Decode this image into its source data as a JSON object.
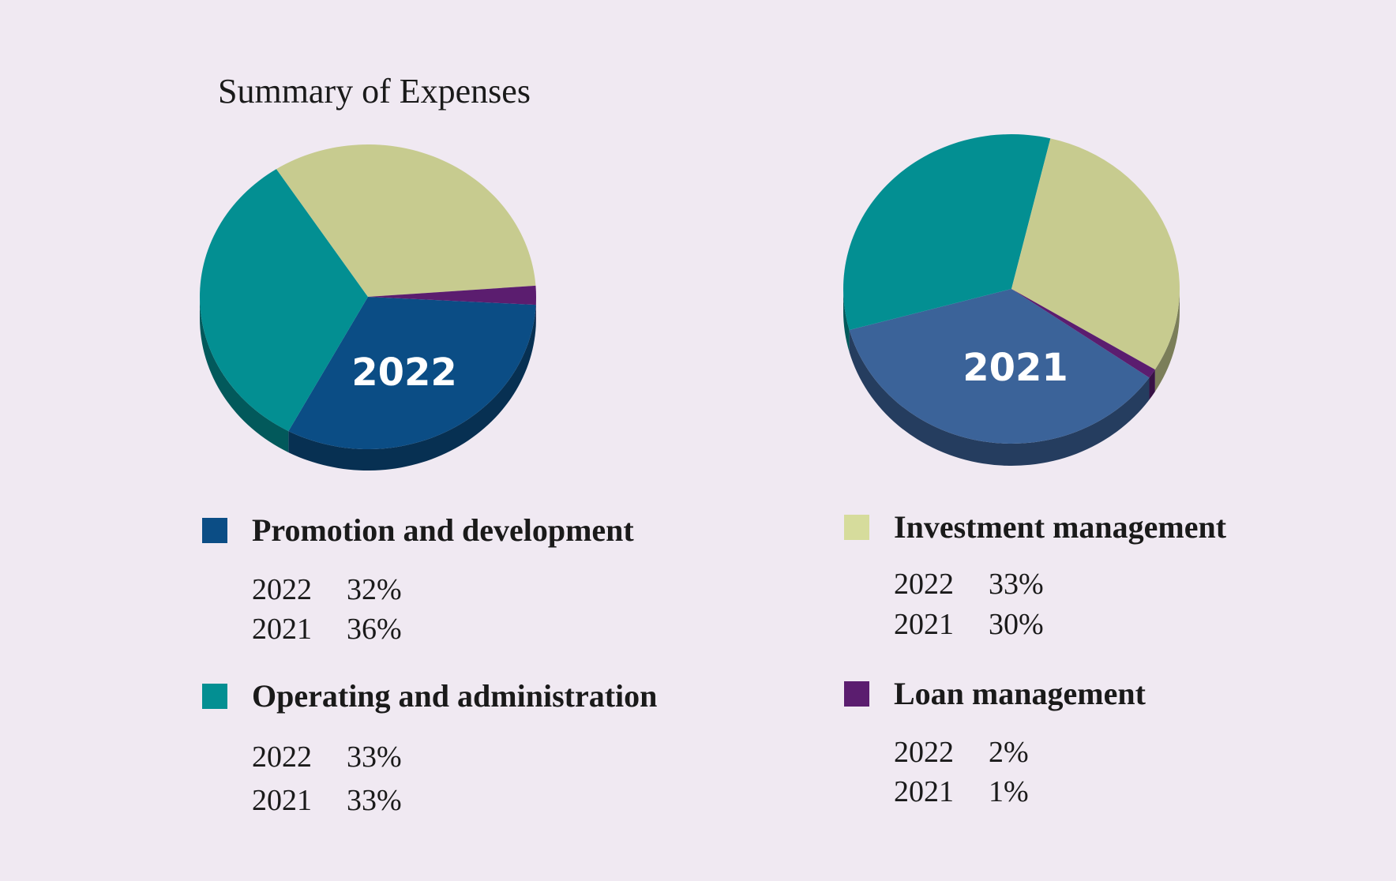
{
  "title": "Summary of Expenses",
  "colors": {
    "background": "#f0e9f2",
    "promotion": "#0b4d85",
    "promotion_2021": "#3b6399",
    "operating": "#038f92",
    "investment": "#c7cb8f",
    "investment_swatch": "#d6dc9c",
    "loan": "#5b1d6f"
  },
  "chart_data": [
    {
      "type": "pie",
      "title": "2022",
      "categories": [
        "Promotion and development",
        "Operating and administration",
        "Investment management",
        "Loan management"
      ],
      "values": [
        32,
        33,
        33,
        2
      ]
    },
    {
      "type": "pie",
      "title": "2021",
      "categories": [
        "Promotion and development",
        "Operating and administration",
        "Investment management",
        "Loan management"
      ],
      "values": [
        36,
        33,
        30,
        1
      ]
    }
  ],
  "legend": [
    {
      "name": "Promotion and development",
      "color_key": "promotion",
      "rows": [
        {
          "year": "2022",
          "pct": "32%"
        },
        {
          "year": "2021",
          "pct": "36%"
        }
      ]
    },
    {
      "name": "Operating and administration",
      "color_key": "operating",
      "rows": [
        {
          "year": "2022",
          "pct": "33%"
        },
        {
          "year": "2021",
          "pct": "33%"
        }
      ]
    },
    {
      "name": "Investment management",
      "color_key": "investment_swatch",
      "rows": [
        {
          "year": "2022",
          "pct": "33%"
        },
        {
          "year": "2021",
          "pct": "30%"
        }
      ]
    },
    {
      "name": "Loan management",
      "color_key": "loan",
      "rows": [
        {
          "year": "2022",
          "pct": "2%"
        },
        {
          "year": "2021",
          "pct": "1%"
        }
      ]
    }
  ]
}
